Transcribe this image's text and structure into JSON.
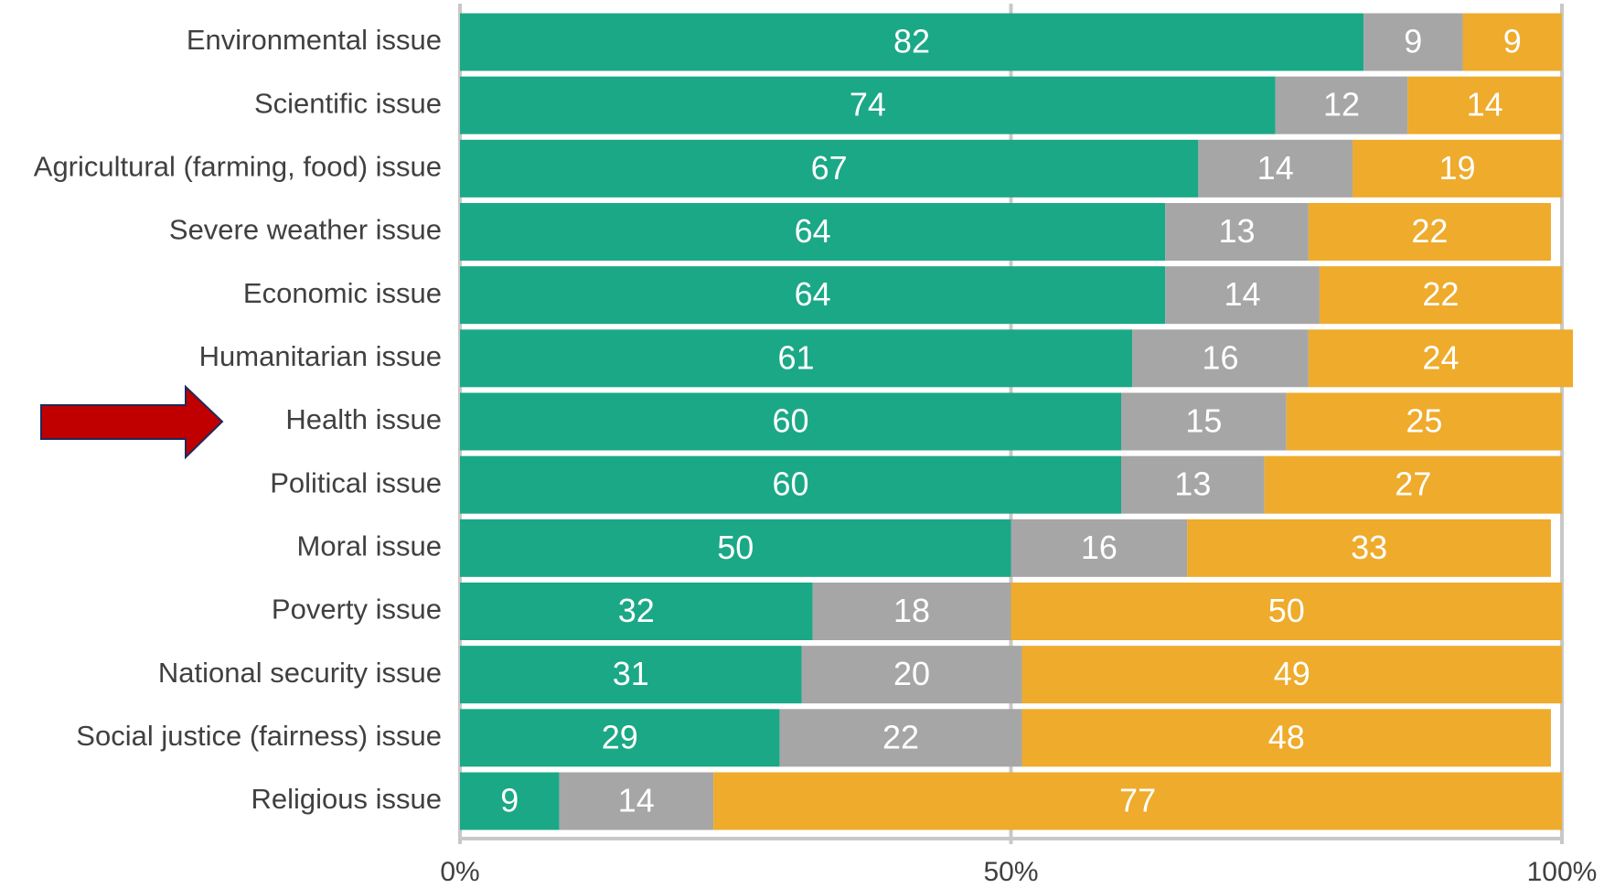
{
  "chart_data": {
    "type": "stacked-barh",
    "categories": [
      "Environmental issue",
      "Scientific issue",
      "Agricultural (farming, food) issue",
      "Severe weather issue",
      "Economic issue",
      "Humanitarian issue",
      "Health issue",
      "Political issue",
      "Moral issue",
      "Poverty issue",
      "National security issue",
      "Social justice (fairness) issue",
      "Religious issue"
    ],
    "series": [
      {
        "color": "#1ba886",
        "values": [
          82,
          74,
          67,
          64,
          64,
          61,
          60,
          60,
          50,
          32,
          31,
          29,
          9
        ]
      },
      {
        "color": "#a6a6a6",
        "values": [
          9,
          12,
          14,
          13,
          14,
          16,
          15,
          13,
          16,
          18,
          20,
          22,
          14
        ]
      },
      {
        "color": "#eeab2c",
        "values": [
          9,
          14,
          19,
          22,
          22,
          24,
          25,
          27,
          33,
          50,
          49,
          48,
          77
        ]
      }
    ],
    "xlim": [
      0,
      100
    ],
    "xticks": [
      {
        "value": 0,
        "label": "0%"
      },
      {
        "value": 50,
        "label": "50%"
      },
      {
        "value": 100,
        "label": "100%"
      }
    ],
    "grid": true
  }
}
